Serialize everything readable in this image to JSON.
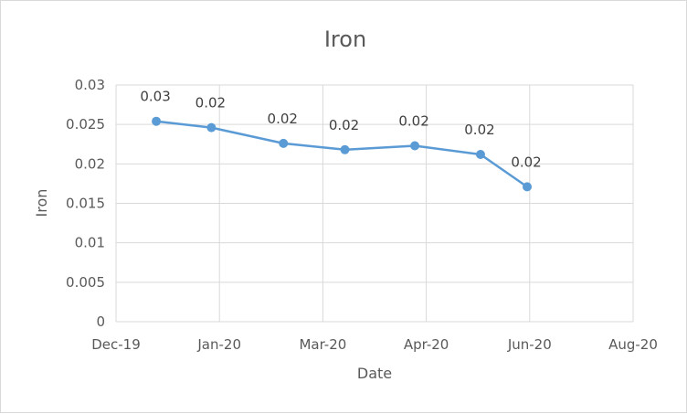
{
  "chart_data": {
    "type": "line",
    "title": "Iron",
    "xlabel": "Date",
    "ylabel": "Iron",
    "xlim": [
      "2019-12-01",
      "2020-08-01"
    ],
    "ylim": [
      0,
      0.03
    ],
    "x_ticks": [
      "Dec-19",
      "Jan-20",
      "Mar-20",
      "Apr-20",
      "Jun-20",
      "Aug-20"
    ],
    "y_ticks": [
      "0",
      "0.005",
      "0.01",
      "0.015",
      "0.02",
      "0.025",
      "0.03"
    ],
    "grid": true,
    "legend": "none",
    "series": [
      {
        "color": "#5b9bd5",
        "points": [
          {
            "x": "2019-12-20",
            "y": 0.0254,
            "label": "0.03"
          },
          {
            "x": "2020-01-15",
            "y": 0.0246,
            "label": "0.02"
          },
          {
            "x": "2020-02-18",
            "y": 0.0226,
            "label": "0.02"
          },
          {
            "x": "2020-03-18",
            "y": 0.0218,
            "label": "0.02"
          },
          {
            "x": "2020-04-20",
            "y": 0.0223,
            "label": "0.02"
          },
          {
            "x": "2020-05-21",
            "y": 0.0212,
            "label": "0.02"
          },
          {
            "x": "2020-06-12",
            "y": 0.0171,
            "label": "0.02"
          }
        ]
      }
    ]
  }
}
